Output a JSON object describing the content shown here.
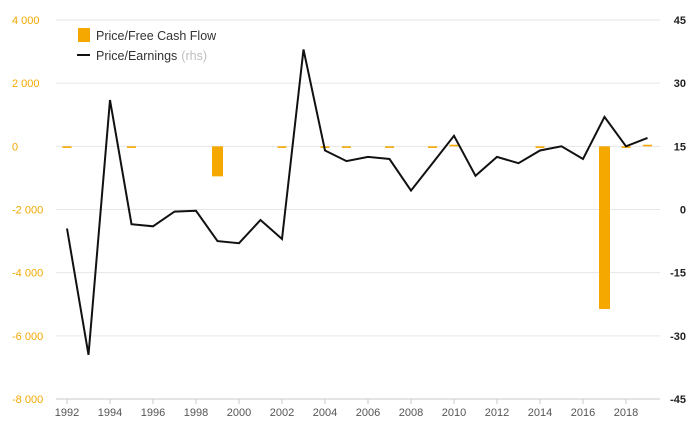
{
  "chart_data": {
    "type": "bar+line",
    "title": "",
    "x": [
      1992,
      1993,
      1994,
      1995,
      1996,
      1997,
      1998,
      1999,
      2000,
      2001,
      2002,
      2003,
      2004,
      2005,
      2006,
      2007,
      2008,
      2009,
      2010,
      2011,
      2012,
      2013,
      2014,
      2015,
      2016,
      2017,
      2018,
      2019
    ],
    "x_tick_labels": [
      "1992",
      "1994",
      "1996",
      "1998",
      "2000",
      "2002",
      "2004",
      "2006",
      "2008",
      "2010",
      "2012",
      "2014",
      "2016",
      "2018"
    ],
    "series": [
      {
        "name": "Price/Free Cash Flow",
        "type": "bar",
        "axis": "left",
        "color": "#f5a800",
        "values": [
          -30,
          null,
          null,
          -60,
          null,
          null,
          null,
          -950,
          null,
          null,
          -40,
          null,
          -50,
          -40,
          null,
          -40,
          null,
          -40,
          40,
          null,
          null,
          null,
          -40,
          null,
          null,
          -5150,
          -40,
          80
        ]
      },
      {
        "name": "Price/Earnings",
        "name_suffix": "(rhs)",
        "type": "line",
        "axis": "right",
        "color": "#111111",
        "values": [
          -4.5,
          -34.5,
          26.0,
          -3.5,
          -4.0,
          -0.5,
          -0.3,
          -7.5,
          -8.0,
          -2.5,
          -7.0,
          38.0,
          14.0,
          11.5,
          12.5,
          12.0,
          4.5,
          11.0,
          17.5,
          8.0,
          12.5,
          11.0,
          14.0,
          15.0,
          12.0,
          22.0,
          15.0,
          17.0
        ]
      }
    ],
    "y_left": {
      "ylim": [
        -8000,
        4000
      ],
      "ticks": [
        4000,
        2000,
        0,
        -2000,
        -4000,
        -6000,
        -8000
      ],
      "tick_labels": [
        "4 000",
        "2 000",
        "0",
        "-2 000",
        "-4 000",
        "-6 000",
        "-8 000"
      ],
      "color": "#f3a800"
    },
    "y_right": {
      "ylim": [
        -45,
        45
      ],
      "ticks": [
        45,
        30,
        15,
        0,
        -15,
        -30,
        -45
      ],
      "tick_labels": [
        "45",
        "30",
        "15",
        "0",
        "-15",
        "-30",
        "-45"
      ]
    },
    "grid": true,
    "legend": "top-left"
  }
}
